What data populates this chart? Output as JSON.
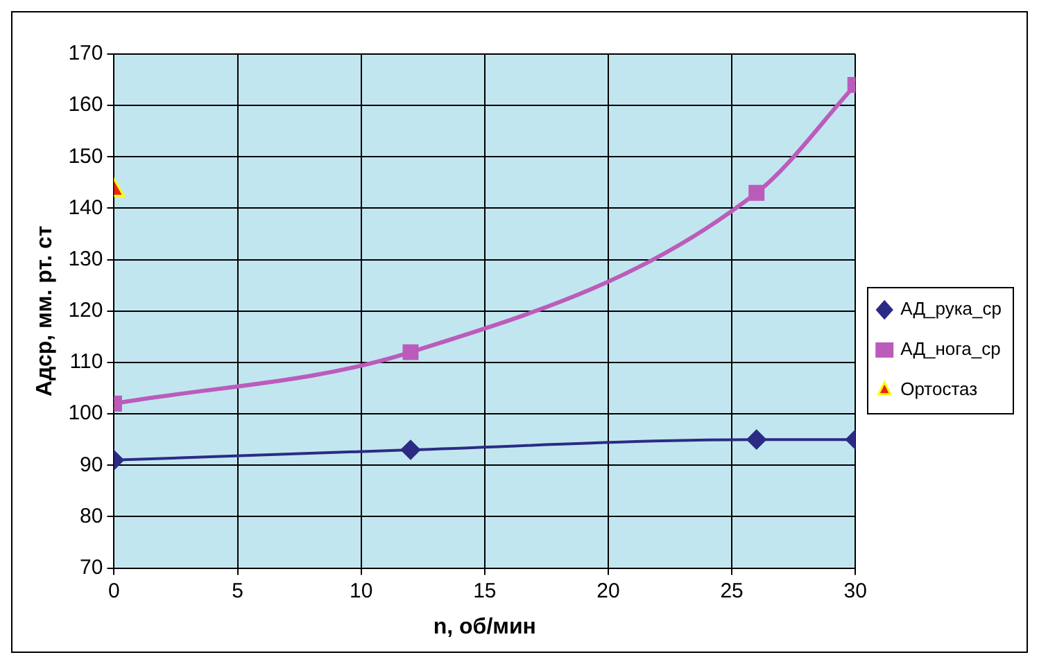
{
  "chart_data": {
    "type": "line",
    "xlabel": "n, об/мин",
    "ylabel": "Адср, мм. рт. ст",
    "xlim": [
      0,
      30
    ],
    "xticks": [
      0,
      5,
      10,
      15,
      20,
      25,
      30
    ],
    "ylim": [
      70,
      170
    ],
    "yticks": [
      70,
      80,
      90,
      100,
      110,
      120,
      130,
      140,
      150,
      160,
      170
    ],
    "grid": true,
    "legend": "right",
    "series": [
      {
        "name": "АД_рука_ср",
        "color": "#2b2b85",
        "marker": "diamond",
        "x": [
          0,
          12,
          26,
          30
        ],
        "values": [
          91,
          93,
          95,
          95
        ]
      },
      {
        "name": "АД_нога_ср",
        "color": "#bb5cbb",
        "marker": "square",
        "x": [
          0,
          12,
          26,
          30
        ],
        "values": [
          102,
          112,
          143,
          164
        ]
      },
      {
        "name": "Ортостаз",
        "type": "scatter",
        "color": "#e8261c",
        "marker": "triangle",
        "x": [
          0
        ],
        "values": [
          143.5
        ]
      }
    ]
  }
}
